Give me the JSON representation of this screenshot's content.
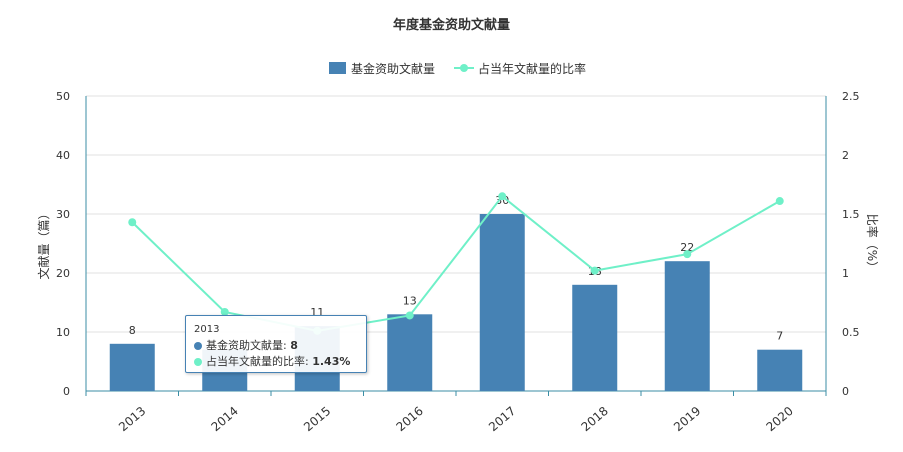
{
  "chart_data": {
    "type": "bar",
    "title": "年度基金资助文献量",
    "categories": [
      "2013",
      "2014",
      "2015",
      "2016",
      "2017",
      "2018",
      "2019",
      "2020"
    ],
    "series": [
      {
        "name": "基金资助文献量",
        "type": "bar",
        "axis": "left",
        "color": "#4682b4",
        "values": [
          8,
          7,
          11,
          13,
          30,
          18,
          22,
          7
        ],
        "data_labels": [
          "8",
          "",
          "11",
          "13",
          "30",
          "18",
          "22",
          "7"
        ]
      },
      {
        "name": "占当年文献量的比率",
        "type": "line",
        "axis": "right",
        "color": "#6ff0c8",
        "values": [
          1.43,
          0.67,
          0.51,
          0.64,
          1.65,
          1.02,
          1.16,
          1.61
        ]
      }
    ],
    "ylabel": "文献量（篇）",
    "ylabel_right": "比率（%）",
    "ylim": [
      0,
      50
    ],
    "yticks": [
      "0",
      "10",
      "20",
      "30",
      "40",
      "50"
    ],
    "ylim_right": [
      0,
      2.5
    ],
    "yticks_right": [
      "0",
      "0.5",
      "1",
      "1.5",
      "2",
      "2.5"
    ],
    "grid": true,
    "legend_position": "top-center"
  },
  "tooltip": {
    "category": "2013",
    "bar_label": "基金资助文献量:",
    "bar_value": "8",
    "line_label": "占当年文献量的比率:",
    "line_value": "1.43%"
  }
}
